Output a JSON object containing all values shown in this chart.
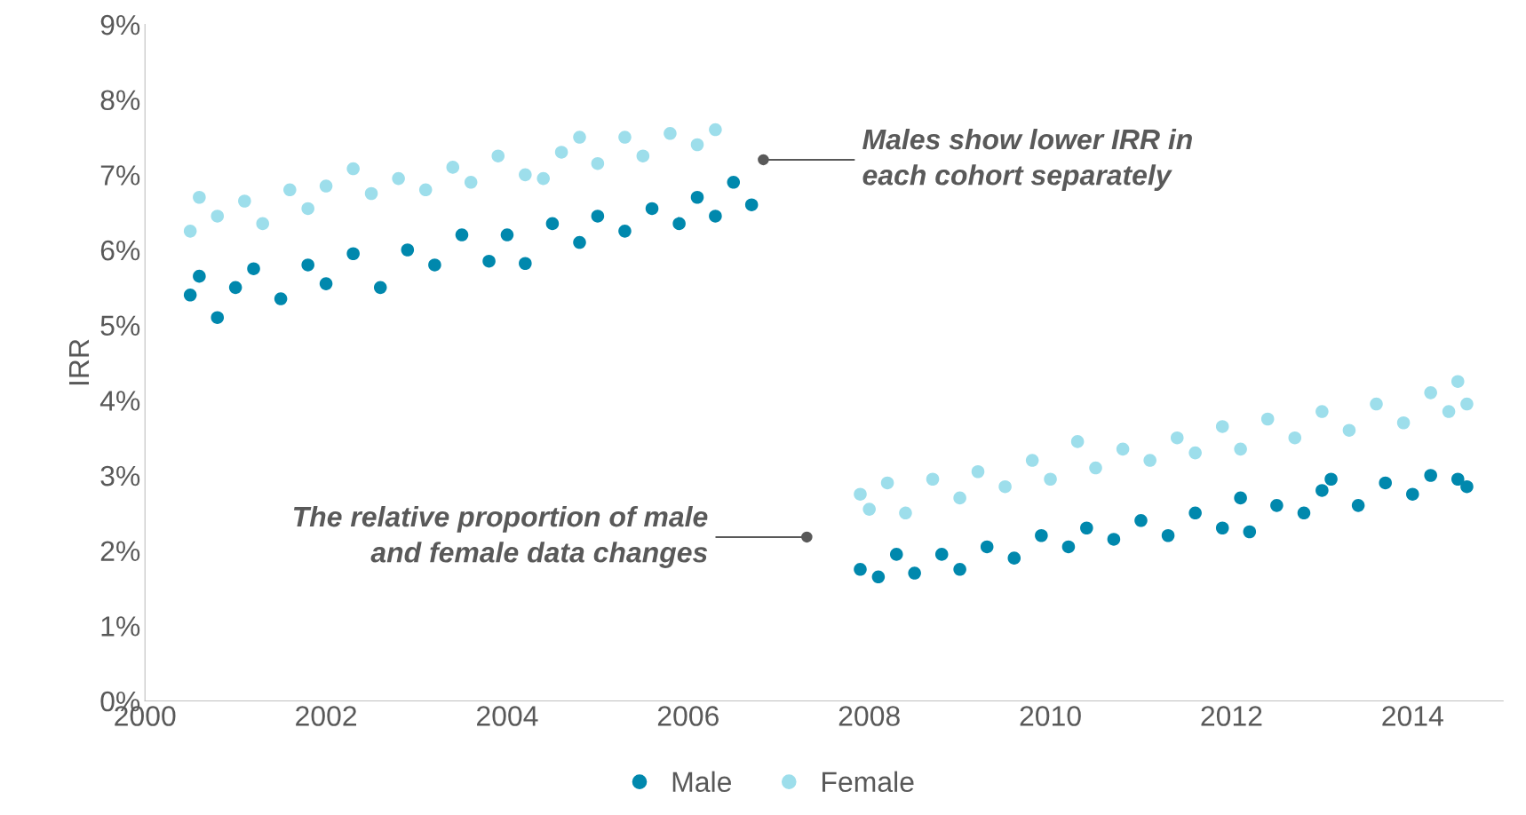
{
  "chart_data": {
    "type": "scatter",
    "ylabel": "IRR",
    "marker": "circle",
    "grid": false,
    "legend": "bottom",
    "xlim": [
      2000,
      2015
    ],
    "xticks": [
      2000,
      2002,
      2004,
      2006,
      2008,
      2010,
      2012,
      2014
    ],
    "ylim": [
      0,
      9
    ],
    "yticks": [
      {
        "value": 0,
        "label": "0%"
      },
      {
        "value": 1,
        "label": "1%"
      },
      {
        "value": 2,
        "label": "2%"
      },
      {
        "value": 3,
        "label": "3%"
      },
      {
        "value": 4,
        "label": "4%"
      },
      {
        "value": 5,
        "label": "5%"
      },
      {
        "value": 6,
        "label": "6%"
      },
      {
        "value": 7,
        "label": "7%"
      },
      {
        "value": 8,
        "label": "8%"
      },
      {
        "value": 9,
        "label": "9%"
      }
    ],
    "series": [
      {
        "name": "Male",
        "color": "#0088ad",
        "x": [
          2000.5,
          2000.6,
          2000.8,
          2001.0,
          2001.2,
          2001.5,
          2001.8,
          2002.0,
          2002.3,
          2002.6,
          2002.9,
          2003.2,
          2003.5,
          2003.8,
          2004.0,
          2004.2,
          2004.5,
          2004.8,
          2005.0,
          2005.3,
          2005.6,
          2005.9,
          2006.1,
          2006.3,
          2006.5,
          2006.7,
          2007.9,
          2008.1,
          2008.3,
          2008.5,
          2008.8,
          2009.0,
          2009.3,
          2009.6,
          2009.9,
          2010.2,
          2010.4,
          2010.7,
          2011.0,
          2011.3,
          2011.6,
          2011.9,
          2012.1,
          2012.2,
          2012.5,
          2012.8,
          2013.0,
          2013.1,
          2013.4,
          2013.7,
          2014.0,
          2014.2,
          2014.5,
          2014.6
        ],
        "values": [
          5.4,
          5.65,
          5.1,
          5.5,
          5.75,
          5.35,
          5.8,
          5.55,
          5.95,
          5.5,
          6.0,
          5.8,
          6.2,
          5.85,
          6.2,
          5.82,
          6.35,
          6.1,
          6.45,
          6.25,
          6.55,
          6.35,
          6.7,
          6.45,
          6.9,
          6.6,
          1.75,
          1.65,
          1.95,
          1.7,
          1.95,
          1.75,
          2.05,
          1.9,
          2.2,
          2.05,
          2.3,
          2.15,
          2.4,
          2.2,
          2.5,
          2.3,
          2.7,
          2.25,
          2.6,
          2.5,
          2.8,
          2.95,
          2.6,
          2.9,
          2.75,
          3.0,
          2.95,
          2.85
        ]
      },
      {
        "name": "Female",
        "color": "#9ddeeb",
        "x": [
          2000.5,
          2000.6,
          2000.8,
          2001.1,
          2001.3,
          2001.6,
          2001.8,
          2002.0,
          2002.3,
          2002.5,
          2002.8,
          2003.1,
          2003.4,
          2003.6,
          2003.9,
          2004.2,
          2004.4,
          2004.6,
          2004.8,
          2005.0,
          2005.3,
          2005.5,
          2005.8,
          2006.1,
          2006.3,
          2007.9,
          2008.0,
          2008.2,
          2008.4,
          2008.7,
          2009.0,
          2009.2,
          2009.5,
          2009.8,
          2010.0,
          2010.3,
          2010.5,
          2010.8,
          2011.1,
          2011.4,
          2011.6,
          2011.9,
          2012.1,
          2012.4,
          2012.7,
          2013.0,
          2013.3,
          2013.6,
          2013.9,
          2014.2,
          2014.4,
          2014.5,
          2014.6
        ],
        "values": [
          6.25,
          6.7,
          6.45,
          6.65,
          6.35,
          6.8,
          6.55,
          6.85,
          7.08,
          6.75,
          6.95,
          6.8,
          7.1,
          6.9,
          7.25,
          7.0,
          6.95,
          7.3,
          7.5,
          7.15,
          7.5,
          7.25,
          7.55,
          7.4,
          7.6,
          2.75,
          2.55,
          2.9,
          2.5,
          2.95,
          2.7,
          3.05,
          2.85,
          3.2,
          2.95,
          3.45,
          3.1,
          3.35,
          3.2,
          3.5,
          3.3,
          3.65,
          3.35,
          3.75,
          3.5,
          3.85,
          3.6,
          3.95,
          3.7,
          4.1,
          3.85,
          4.25,
          3.95
        ]
      }
    ],
    "annotations": [
      {
        "text": "Males show lower IRR in\neach cohort separately",
        "x": 2006.83,
        "y": 7.2
      },
      {
        "text": "The relative proportion of male\nand female data changes",
        "x": 2007.31,
        "y": 2.18
      }
    ]
  }
}
